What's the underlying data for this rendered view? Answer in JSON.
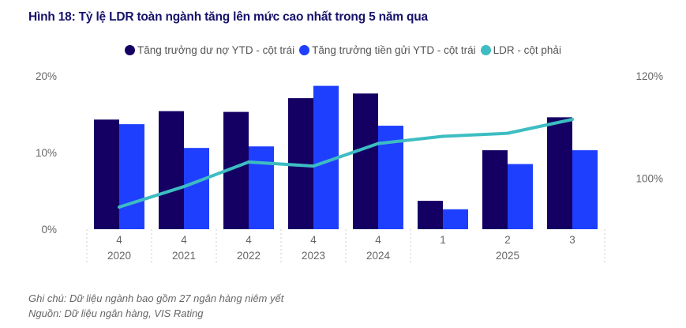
{
  "title": "Hình 18: Tỷ lệ LDR toàn ngành tăng lên mức cao nhất trong 5 năm qua",
  "chart_data": {
    "type": "bar+line",
    "title": "Hình 18: Tỷ lệ LDR toàn ngành tăng lên mức cao nhất trong 5 năm qua",
    "categories": [
      {
        "quarter": "4",
        "year": "2020"
      },
      {
        "quarter": "4",
        "year": "2021"
      },
      {
        "quarter": "4",
        "year": "2022"
      },
      {
        "quarter": "4",
        "year": "2023"
      },
      {
        "quarter": "4",
        "year": "2024"
      },
      {
        "quarter": "1",
        "year": "2025"
      },
      {
        "quarter": "2",
        "year": "2025"
      },
      {
        "quarter": "3",
        "year": "2025"
      }
    ],
    "year_labels": [
      "2020",
      "2021",
      "2022",
      "2023",
      "2024",
      "2025"
    ],
    "series": [
      {
        "name": "Tăng trưởng dư nợ YTD - cột trái",
        "type": "bar",
        "axis": "left",
        "color": "#140063",
        "values": [
          14.3,
          15.4,
          15.3,
          17.1,
          17.7,
          3.7,
          10.3,
          14.6
        ]
      },
      {
        "name": "Tăng trưởng tiền gửi YTD - cột trái",
        "type": "bar",
        "axis": "left",
        "color": "#1f3fff",
        "values": [
          13.7,
          10.6,
          10.8,
          18.7,
          13.5,
          2.6,
          8.5,
          10.3
        ]
      },
      {
        "name": "LDR - cột phải",
        "type": "line",
        "axis": "right",
        "color": "#3dbdc2",
        "values": [
          94.4,
          98.4,
          103.2,
          102.4,
          106.8,
          108.2,
          108.8,
          111.5
        ]
      }
    ],
    "y_left": {
      "ylim": [
        0,
        20
      ],
      "ticks": [
        "0%",
        "10%",
        "20%"
      ],
      "tick_values": [
        0,
        10,
        20
      ]
    },
    "y_right": {
      "ylim": [
        90,
        120
      ],
      "ticks": [
        "100%",
        "120%"
      ],
      "tick_values": [
        100,
        120
      ]
    },
    "grid": false,
    "legend_position": "top"
  },
  "notes": {
    "note": "Ghi chú: Dữ liệu ngành bao gồm 27 ngân hàng niêm yết",
    "source": "Nguồn: Dữ liệu ngân hàng, VIS Rating"
  }
}
